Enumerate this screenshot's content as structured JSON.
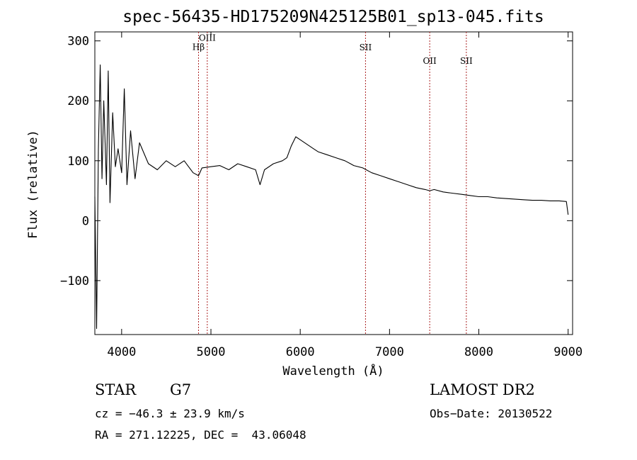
{
  "chart_data": {
    "type": "line",
    "title": "spec-56435-HD175209N425125B01_sp13-045.fits",
    "xlabel": "Wavelength (Å)",
    "ylabel": "Flux (relative)",
    "xlim": [
      3700,
      9050
    ],
    "ylim": [
      -190,
      315
    ],
    "xticks": [
      4000,
      5000,
      6000,
      7000,
      8000,
      9000
    ],
    "yticks": [
      -100,
      0,
      100,
      200,
      300
    ],
    "xtick_labels": [
      "4000",
      "5000",
      "6000",
      "7000",
      "8000",
      "9000"
    ],
    "ytick_labels": [
      "−100",
      "0",
      "100",
      "200",
      "300"
    ],
    "grid": false,
    "series": [
      {
        "color": "#000000",
        "x": [
          3700,
          3720,
          3740,
          3760,
          3780,
          3800,
          3830,
          3850,
          3870,
          3900,
          3930,
          3960,
          4000,
          4030,
          4060,
          4100,
          4150,
          4200,
          4300,
          4400,
          4500,
          4600,
          4700,
          4800,
          4861,
          4900,
          5000,
          5100,
          5200,
          5300,
          5400,
          5500,
          5550,
          5600,
          5700,
          5800,
          5850,
          5900,
          5950,
          6000,
          6050,
          6100,
          6150,
          6200,
          6300,
          6400,
          6500,
          6563,
          6600,
          6700,
          6800,
          6900,
          7000,
          7100,
          7200,
          7300,
          7400,
          7450,
          7500,
          7600,
          7700,
          7800,
          7900,
          8000,
          8100,
          8200,
          8300,
          8400,
          8500,
          8600,
          8700,
          8800,
          8900,
          8980,
          9000
        ],
        "y": [
          40,
          -180,
          120,
          260,
          70,
          200,
          60,
          250,
          30,
          180,
          90,
          120,
          80,
          220,
          60,
          150,
          70,
          130,
          95,
          85,
          100,
          90,
          100,
          80,
          75,
          88,
          90,
          92,
          85,
          95,
          90,
          85,
          60,
          85,
          95,
          100,
          105,
          125,
          140,
          135,
          130,
          125,
          120,
          115,
          110,
          105,
          100,
          95,
          92,
          88,
          80,
          75,
          70,
          65,
          60,
          55,
          52,
          50,
          52,
          48,
          46,
          44,
          42,
          40,
          40,
          38,
          37,
          36,
          35,
          34,
          34,
          33,
          33,
          32,
          10
        ]
      }
    ],
    "line_markers": [
      {
        "label": "Hβ",
        "x": 4861,
        "label_y": 285
      },
      {
        "label": "OIII",
        "x": 4959,
        "label_y": 300
      },
      {
        "label": "SII",
        "x": 6731,
        "label_y": 284
      },
      {
        "label": "OII",
        "x": 7450,
        "label_y": 262
      },
      {
        "label": "SII",
        "x": 7860,
        "label_y": 262
      }
    ],
    "marker_color": "#aa2222"
  },
  "info": {
    "object_type": "STAR",
    "subclass": "G7",
    "survey": "LAMOST DR2",
    "cz": "cz = −46.3 ± 23.9 km/s",
    "obs_date": "Obs−Date: 20130522",
    "coords": "RA = 271.12225, DEC =  43.06048"
  }
}
